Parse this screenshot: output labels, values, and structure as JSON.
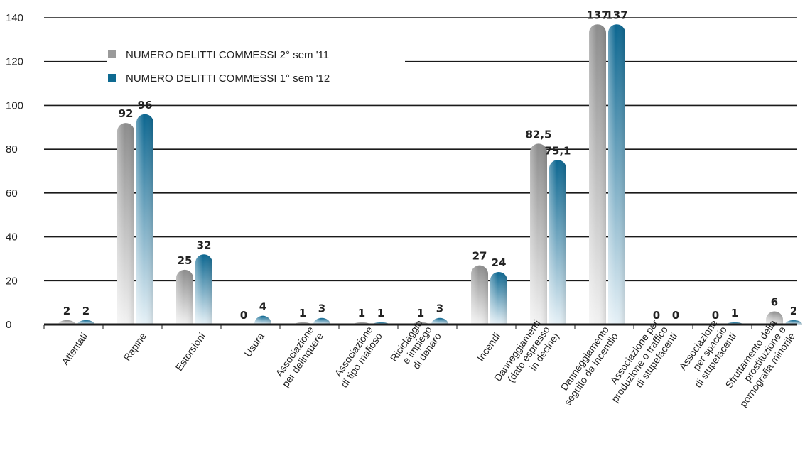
{
  "chart_data": {
    "type": "bar",
    "categories": [
      "Attentati",
      "Rapine",
      "Estorsioni",
      "Usura",
      "Associazione\nper delinquere",
      "Associazione\ndi tipo mafioso",
      "Riciclaggio\ne impiego\ndi denaro",
      "Incendi",
      "Danneggiamenti\n(dato espresso\nin decine)",
      "Danneggiamento\nseguito da incendio",
      "Associazione per\nproduzione o traffico\ndi stupefacenti",
      "Associazione\nper spaccio\ndi stupefacenti",
      "Sfruttamento della\nprostituzione e\npornografia minorile"
    ],
    "series": [
      {
        "name": "NUMERO DELITTI COMMESSI 2° sem '11",
        "color": "#9a9a9a",
        "values": [
          2,
          92,
          25,
          0,
          1,
          1,
          1,
          27,
          82.5,
          137,
          0,
          0,
          6
        ],
        "labels": [
          "2",
          "92",
          "25",
          "0",
          "1",
          "1",
          "1",
          "27",
          "82,5",
          "137",
          "0",
          "0",
          "6"
        ]
      },
      {
        "name": "NUMERO DELITTI COMMESSI 1° sem '12",
        "color": "#0e6a91",
        "values": [
          2,
          96,
          32,
          4,
          3,
          1,
          3,
          24,
          75.1,
          137,
          0,
          1,
          2
        ],
        "labels": [
          "2",
          "96",
          "32",
          "4",
          "3",
          "1",
          "3",
          "24",
          "75,1",
          "137",
          "0",
          "1",
          "2"
        ]
      }
    ],
    "y_ticks": [
      "0",
      "20",
      "40",
      "60",
      "80",
      "100",
      "120",
      "140"
    ],
    "ylim": [
      0,
      140
    ],
    "grid": true,
    "legend_position": "top-left"
  }
}
